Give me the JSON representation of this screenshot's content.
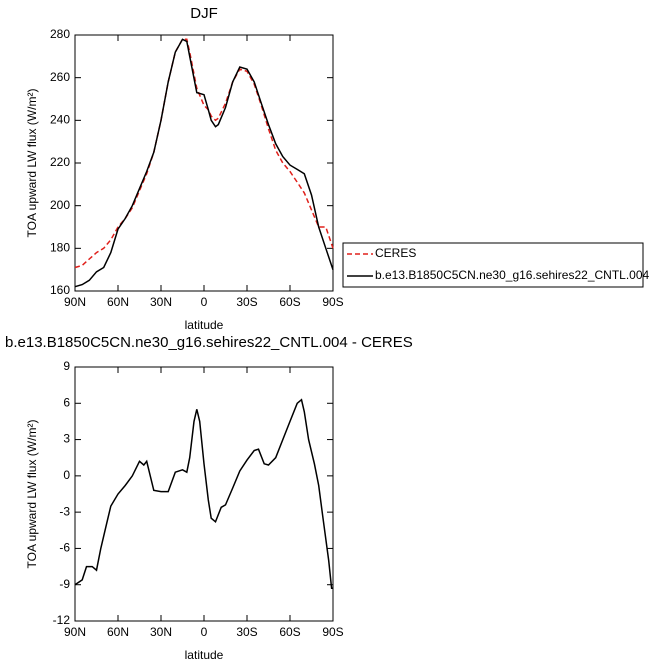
{
  "chart_data": [
    {
      "type": "line",
      "title": "DJF",
      "xlabel": "latitude",
      "ylabel": "TOA upward LW flux (W/m²)",
      "x": [
        90,
        85,
        80,
        75,
        70,
        65,
        60,
        55,
        50,
        45,
        40,
        35,
        30,
        25,
        20,
        15,
        12,
        10,
        5,
        0,
        -3,
        -5,
        -8,
        -10,
        -15,
        -20,
        -25,
        -30,
        -35,
        -40,
        -45,
        -50,
        -55,
        -60,
        -65,
        -70,
        -75,
        -80,
        -85,
        -90
      ],
      "series": [
        {
          "name": "CERES",
          "color": "#e0201b",
          "dashed": true,
          "values": [
            171,
            172,
            175,
            178,
            180,
            184,
            190,
            194,
            199,
            207,
            215,
            225,
            240,
            258,
            272,
            278,
            278,
            272,
            255,
            247,
            245,
            242,
            240,
            241,
            248,
            258,
            264,
            263,
            257,
            247,
            236,
            226,
            220,
            216,
            211,
            206,
            198,
            190,
            190,
            180
          ]
        },
        {
          "name": "b.e13.B1850C5CN.ne30_g16.sehires22_CNTL.004",
          "color": "#000000",
          "dashed": false,
          "values": [
            162,
            163,
            165,
            169,
            171,
            178,
            189,
            194,
            200,
            208,
            216,
            225,
            240,
            258,
            272,
            278,
            277,
            270,
            253,
            252,
            245,
            240,
            237,
            238,
            246,
            258,
            265,
            264,
            258,
            248,
            238,
            229,
            223,
            219,
            217,
            215,
            205,
            190,
            180,
            170
          ]
        }
      ],
      "xlim": [
        90,
        -90
      ],
      "xticks": [
        {
          "value": 90,
          "label": "90N"
        },
        {
          "value": 60,
          "label": "60N"
        },
        {
          "value": 30,
          "label": "30N"
        },
        0,
        {
          "value": -30,
          "label": "30S"
        },
        {
          "value": -60,
          "label": "60S"
        },
        {
          "value": -90,
          "label": "90S"
        }
      ],
      "ylim": [
        160,
        280
      ],
      "yticks": [
        160,
        180,
        200,
        220,
        240,
        260,
        280
      ]
    },
    {
      "type": "line",
      "title": "b.e13.B1850C5CN.ne30_g16.sehires22_CNTL.004 - CERES",
      "xlabel": "latitude",
      "ylabel": "TOA upward LW flux (W/m²)",
      "x": [
        90,
        85,
        82,
        78,
        75,
        72,
        68,
        65,
        60,
        55,
        50,
        45,
        42,
        40,
        35,
        30,
        25,
        20,
        15,
        12,
        10,
        7,
        5,
        3,
        0,
        -3,
        -5,
        -8,
        -12,
        -15,
        -20,
        -25,
        -30,
        -35,
        -38,
        -42,
        -45,
        -50,
        -55,
        -60,
        -65,
        -68,
        -70,
        -73,
        -77,
        -80,
        -83,
        -87,
        -89,
        -90
      ],
      "series": [
        {
          "color": "#000000",
          "dashed": false,
          "values": [
            -9,
            -8.6,
            -7.5,
            -7.5,
            -7.8,
            -6,
            -4,
            -2.5,
            -1.5,
            -0.8,
            0,
            1.2,
            0.9,
            1.2,
            -1.2,
            -1.3,
            -1.3,
            0.3,
            0.5,
            0.3,
            1.5,
            4.5,
            5.5,
            4.5,
            1,
            -2,
            -3.5,
            -3.8,
            -2.6,
            -2.4,
            -1,
            0.4,
            1.3,
            2.1,
            2.2,
            1,
            0.9,
            1.5,
            3,
            4.5,
            6,
            6.3,
            5.3,
            3,
            1,
            -0.8,
            -3.5,
            -7,
            -9.3,
            -9.3
          ]
        }
      ],
      "xlim": [
        90,
        -90
      ],
      "xticks": [
        {
          "value": 90,
          "label": "90N"
        },
        {
          "value": 60,
          "label": "60N"
        },
        {
          "value": 30,
          "label": "30N"
        },
        0,
        {
          "value": -30,
          "label": "30S"
        },
        {
          "value": -60,
          "label": "60S"
        },
        {
          "value": -90,
          "label": "90S"
        }
      ],
      "ylim": [
        -12,
        9
      ],
      "yticks": [
        -12,
        -9,
        -6,
        -3,
        0,
        3,
        6,
        9
      ]
    }
  ]
}
